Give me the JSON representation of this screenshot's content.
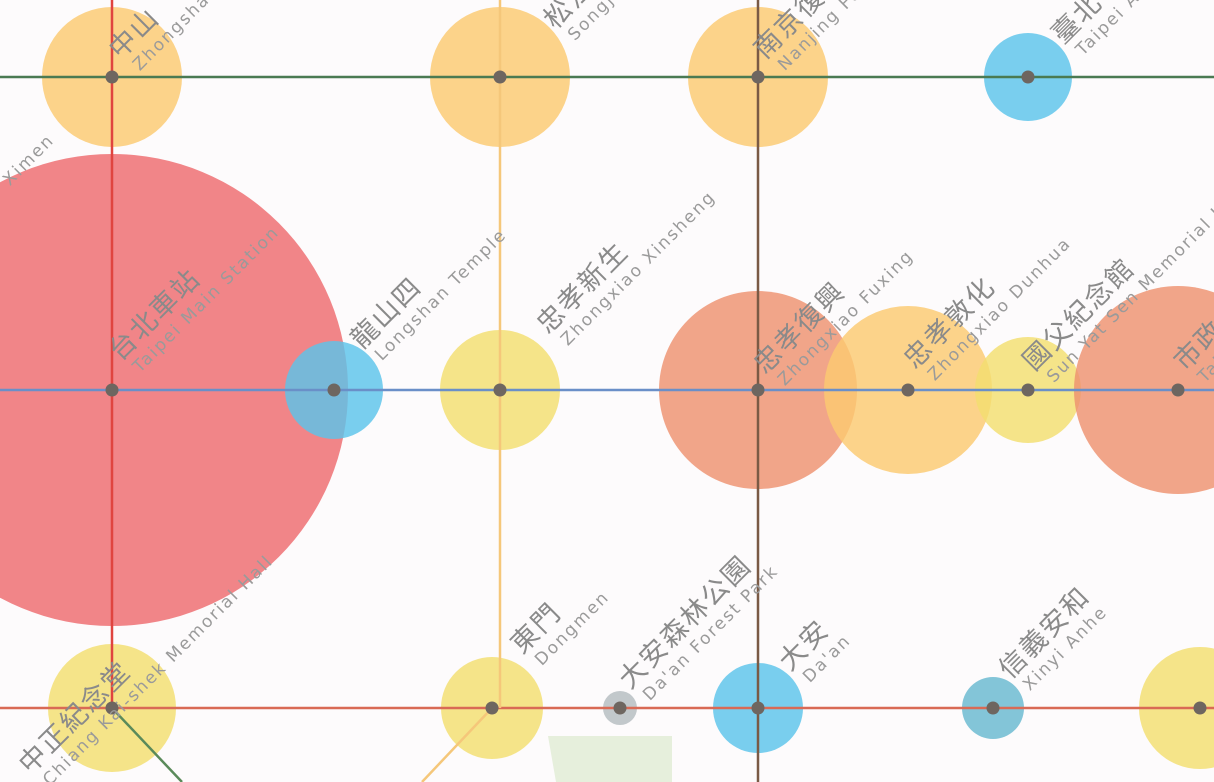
{
  "map": {
    "lines": [
      {
        "id": "green-top",
        "color": "#4a7a52"
      },
      {
        "id": "blue-middle",
        "color": "#6a8fc8"
      },
      {
        "id": "red-bottom",
        "color": "#d96a55"
      },
      {
        "id": "red-vertical",
        "color": "#e0443f"
      },
      {
        "id": "yellow-vertical",
        "color": "#f5c77a"
      },
      {
        "id": "brown-vertical",
        "color": "#7a5a45"
      },
      {
        "id": "green-diagonal",
        "color": "#5a8a5a"
      },
      {
        "id": "yellow-diagonal",
        "color": "#f5c77a"
      }
    ],
    "bubble_colors": {
      "orange": "#fbc970",
      "blue": "#5bc3ea",
      "red": "#ee6a6e",
      "salmon": "#ee916f",
      "yellow": "#f3de6f",
      "teal": "#68b8d0",
      "grey": "#b4bcbf"
    },
    "stations": [
      {
        "zh": "中山",
        "en": "Zhongshan",
        "color": "orange"
      },
      {
        "zh": "松江南京",
        "en": "Songjiang Nanjing",
        "color": "orange"
      },
      {
        "zh": "南京復興",
        "en": "Nanjing Fuxing",
        "color": "orange"
      },
      {
        "zh": "臺北小巨蛋",
        "en": "Taipei Arena",
        "color": "blue"
      },
      {
        "zh": "",
        "en": "Ximen",
        "color": "red"
      },
      {
        "zh": "台北車站",
        "en": "Taipei Main Station",
        "color": "red"
      },
      {
        "zh": "龍山四",
        "en": "Longshan Temple",
        "color": "blue"
      },
      {
        "zh": "忠孝新生",
        "en": "Zhongxiao Xinsheng",
        "color": "yellow"
      },
      {
        "zh": "忠孝復興",
        "en": "Zhongxiao Fuxing",
        "color": "salmon"
      },
      {
        "zh": "忠孝敦化",
        "en": "Zhongxiao Dunhua",
        "color": "orange"
      },
      {
        "zh": "國父紀念館",
        "en": "Sun Yat Sen Memorial Hall",
        "color": "yellow"
      },
      {
        "zh": "市政府",
        "en": "Taipei City Hall",
        "color": "salmon"
      },
      {
        "zh": "中正紀念堂",
        "en": "Chiang Kai-shek Memorial Hall",
        "color": "yellow"
      },
      {
        "zh": "東門",
        "en": "Dongmen",
        "color": "yellow"
      },
      {
        "zh": "大安森林公園",
        "en": "Da'an Forest Park",
        "color": "grey"
      },
      {
        "zh": "大安",
        "en": "Da'an",
        "color": "blue"
      },
      {
        "zh": "信義安和",
        "en": "Xinyi Anhe",
        "color": "teal"
      },
      {
        "zh": "",
        "en": "",
        "color": "yellow"
      }
    ],
    "park": {
      "color": "#e6efdc"
    }
  }
}
